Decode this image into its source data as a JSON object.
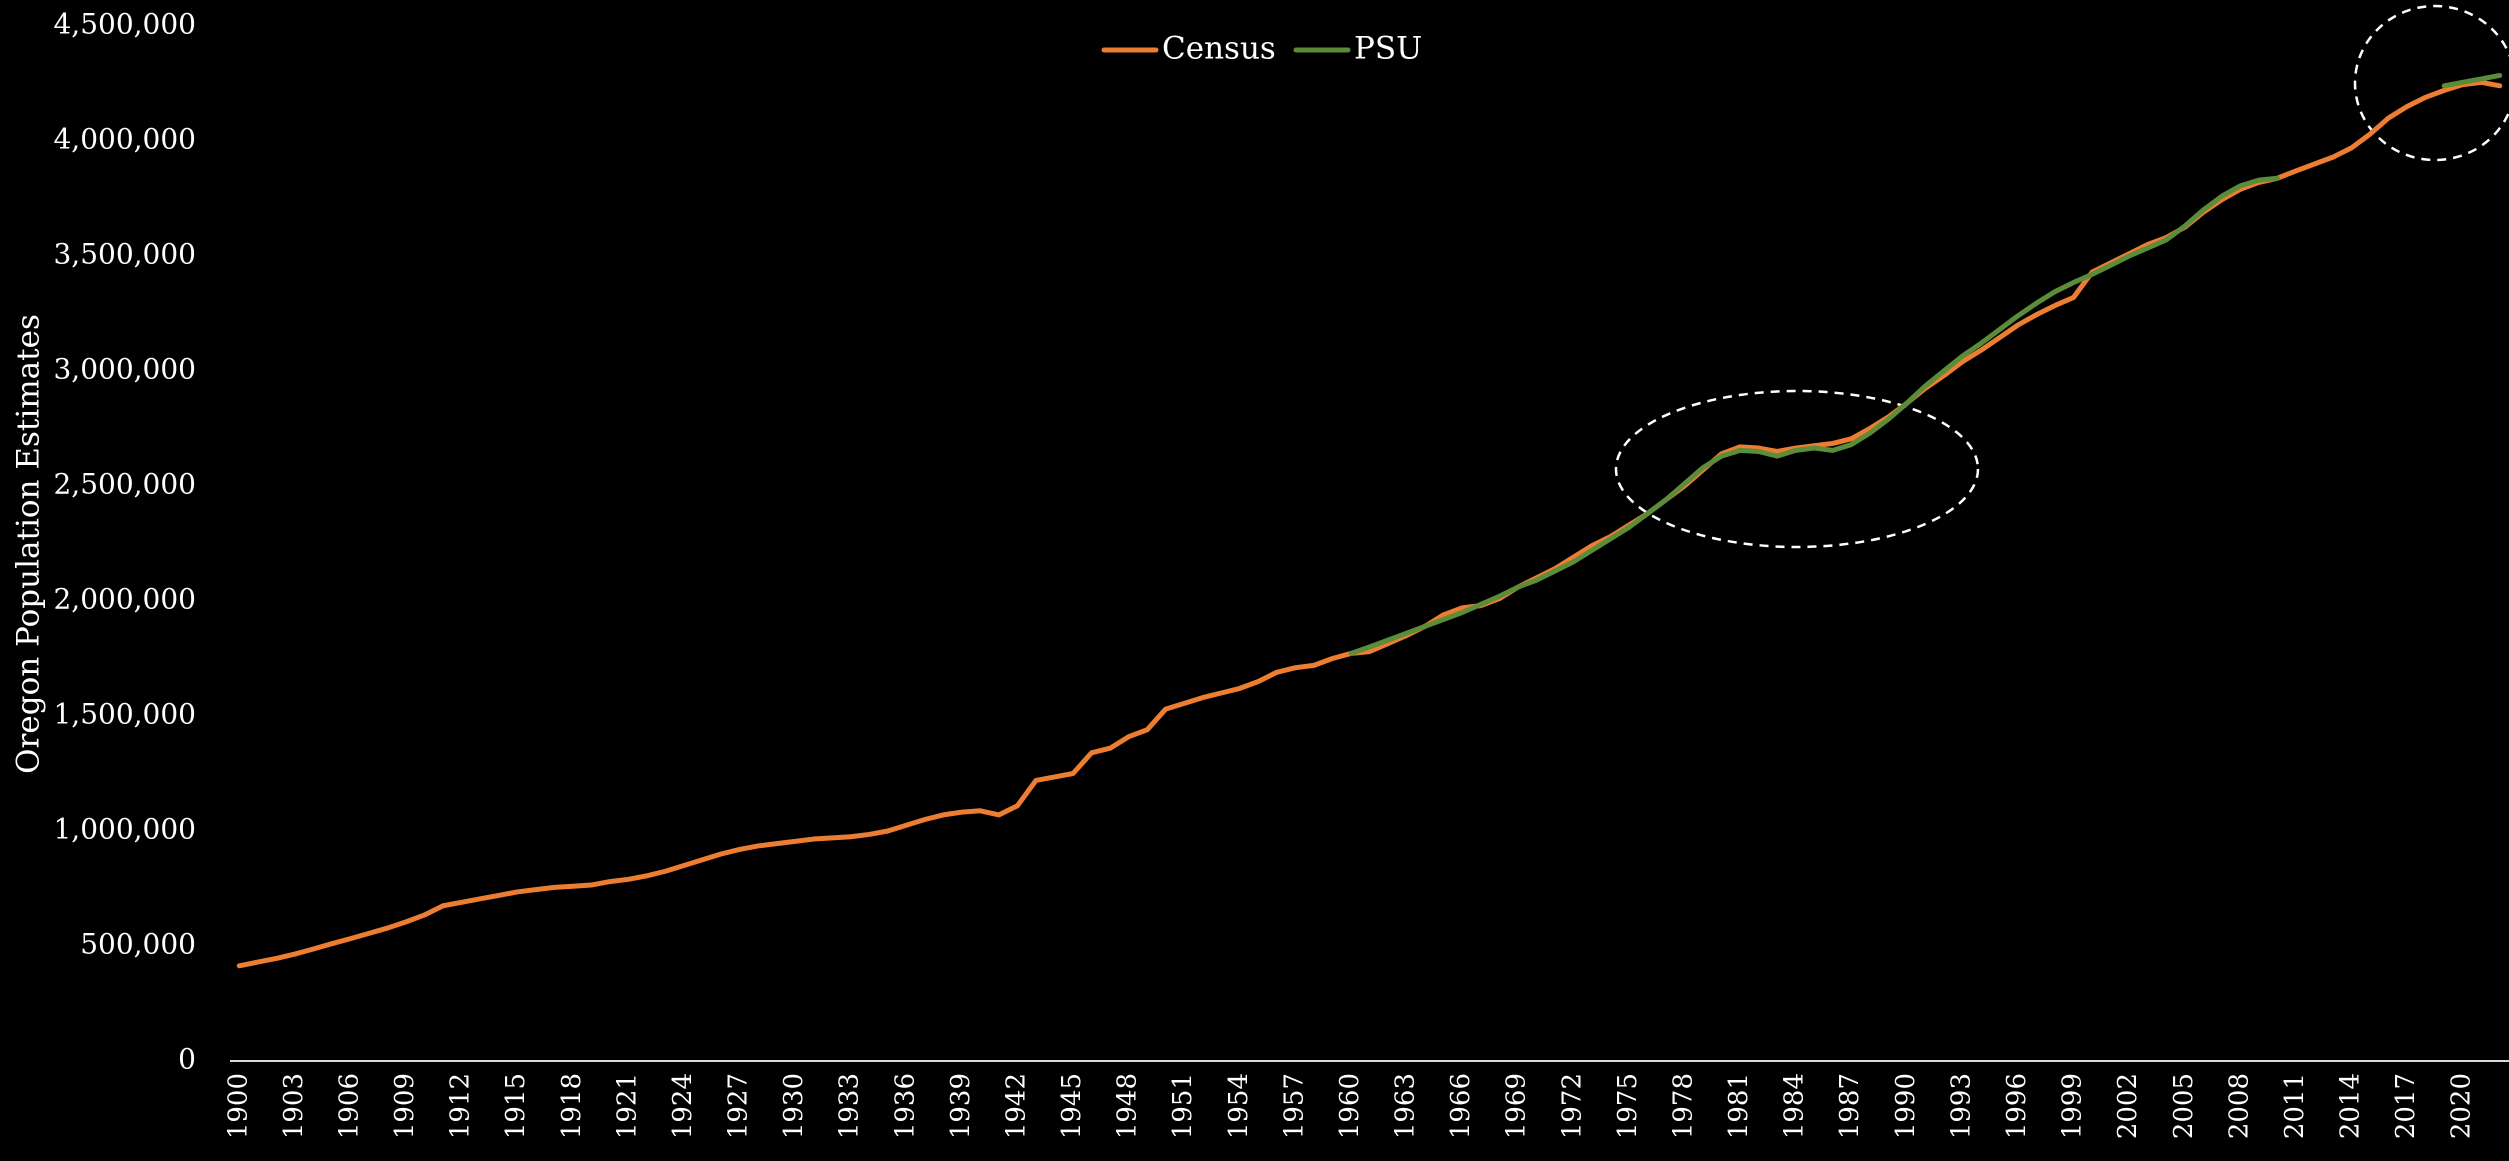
{
  "chart_data": {
    "type": "line",
    "y_label": "Oregon Population Estimates",
    "x": [
      1900,
      1901,
      1902,
      1903,
      1904,
      1905,
      1906,
      1907,
      1908,
      1909,
      1910,
      1911,
      1912,
      1913,
      1914,
      1915,
      1916,
      1917,
      1918,
      1919,
      1920,
      1921,
      1922,
      1923,
      1924,
      1925,
      1926,
      1927,
      1928,
      1929,
      1930,
      1931,
      1932,
      1933,
      1934,
      1935,
      1936,
      1937,
      1938,
      1939,
      1940,
      1941,
      1942,
      1943,
      1944,
      1945,
      1946,
      1947,
      1948,
      1949,
      1950,
      1951,
      1952,
      1953,
      1954,
      1955,
      1956,
      1957,
      1958,
      1959,
      1960,
      1961,
      1962,
      1963,
      1964,
      1965,
      1966,
      1967,
      1968,
      1969,
      1970,
      1971,
      1972,
      1973,
      1974,
      1975,
      1976,
      1977,
      1978,
      1979,
      1980,
      1981,
      1982,
      1983,
      1984,
      1985,
      1986,
      1987,
      1988,
      1989,
      1990,
      1991,
      1992,
      1993,
      1994,
      1995,
      1996,
      1997,
      1998,
      1999,
      2000,
      2001,
      2002,
      2003,
      2004,
      2005,
      2006,
      2007,
      2008,
      2009,
      2010,
      2011,
      2012,
      2013,
      2014,
      2015,
      2016,
      2017,
      2018,
      2019,
      2020,
      2021,
      2022
    ],
    "series": [
      {
        "name": "Census",
        "color": "#ed7d31",
        "values": [
          414000,
          430000,
          446000,
          465000,
          487000,
          510000,
          532000,
          555000,
          578000,
          605000,
          635000,
          675000,
          690000,
          705000,
          720000,
          735000,
          745000,
          755000,
          760000,
          765000,
          780000,
          790000,
          805000,
          825000,
          850000,
          875000,
          900000,
          920000,
          935000,
          945000,
          955000,
          965000,
          970000,
          975000,
          985000,
          1000000,
          1025000,
          1050000,
          1070000,
          1082000,
          1088000,
          1070000,
          1110000,
          1220000,
          1235000,
          1250000,
          1340000,
          1360000,
          1410000,
          1440000,
          1530000,
          1555000,
          1580000,
          1600000,
          1620000,
          1650000,
          1690000,
          1710000,
          1720000,
          1750000,
          1772000,
          1780000,
          1815000,
          1850000,
          1890000,
          1940000,
          1970000,
          1980000,
          2010000,
          2060000,
          2100000,
          2140000,
          2190000,
          2240000,
          2280000,
          2330000,
          2380000,
          2440000,
          2500000,
          2570000,
          2640000,
          2670000,
          2665000,
          2650000,
          2665000,
          2675000,
          2685000,
          2705000,
          2750000,
          2800000,
          2860000,
          2925000,
          2980000,
          3040000,
          3090000,
          3145000,
          3200000,
          3245000,
          3285000,
          3320000,
          3430000,
          3470000,
          3510000,
          3550000,
          3580000,
          3625000,
          3690000,
          3745000,
          3790000,
          3820000,
          3838000,
          3870000,
          3900000,
          3930000,
          3970000,
          4030000,
          4100000,
          4150000,
          4190000,
          4220000,
          4245000,
          4255000,
          4240000
        ]
      },
      {
        "name": "PSU",
        "color": "#5b8c3a",
        "values": [
          null,
          null,
          null,
          null,
          null,
          null,
          null,
          null,
          null,
          null,
          null,
          null,
          null,
          null,
          null,
          null,
          null,
          null,
          null,
          null,
          null,
          null,
          null,
          null,
          null,
          null,
          null,
          null,
          null,
          null,
          null,
          null,
          null,
          null,
          null,
          null,
          null,
          null,
          null,
          null,
          null,
          null,
          null,
          null,
          null,
          null,
          null,
          null,
          null,
          null,
          null,
          null,
          null,
          null,
          null,
          null,
          null,
          null,
          null,
          null,
          1772000,
          1800000,
          1830000,
          1860000,
          1890000,
          1920000,
          1950000,
          1985000,
          2020000,
          2060000,
          2090000,
          2130000,
          2170000,
          2220000,
          2270000,
          2320000,
          2380000,
          2440000,
          2510000,
          2580000,
          2630000,
          2655000,
          2650000,
          2630000,
          2655000,
          2665000,
          2655000,
          2680000,
          2730000,
          2790000,
          2860000,
          2935000,
          3000000,
          3065000,
          3120000,
          3180000,
          3240000,
          3295000,
          3345000,
          3385000,
          3420000,
          3460000,
          3500000,
          3535000,
          3570000,
          3630000,
          3700000,
          3760000,
          3805000,
          3830000,
          3838000,
          null,
          null,
          null,
          null,
          null,
          null,
          null,
          null,
          4240000,
          4255000,
          4270000,
          4285000
        ]
      }
    ],
    "xlim": [
      1899.5,
      2022.5
    ],
    "xticks": [
      1900,
      1903,
      1906,
      1909,
      1912,
      1915,
      1918,
      1921,
      1924,
      1927,
      1930,
      1933,
      1936,
      1939,
      1942,
      1945,
      1948,
      1951,
      1954,
      1957,
      1960,
      1963,
      1966,
      1969,
      1972,
      1975,
      1978,
      1981,
      1984,
      1987,
      1990,
      1993,
      1996,
      1999,
      2002,
      2005,
      2008,
      2011,
      2014,
      2017,
      2020
    ],
    "ylim": [
      0,
      4500000
    ],
    "yticks": [
      0,
      {
        "value": 500000,
        "label": "500,000"
      },
      {
        "value": 1000000,
        "label": "1,000,000"
      },
      {
        "value": 1500000,
        "label": "1,500,000"
      },
      {
        "value": 2000000,
        "label": "2,000,000"
      },
      {
        "value": 2500000,
        "label": "2,500,000"
      },
      {
        "value": 3000000,
        "label": "3,000,000"
      },
      {
        "value": 3500000,
        "label": "3,500,000"
      },
      {
        "value": 4000000,
        "label": "4,000,000"
      },
      {
        "value": 4500000,
        "label": "4,500,000"
      }
    ],
    "grid": false,
    "legend": "top"
  }
}
